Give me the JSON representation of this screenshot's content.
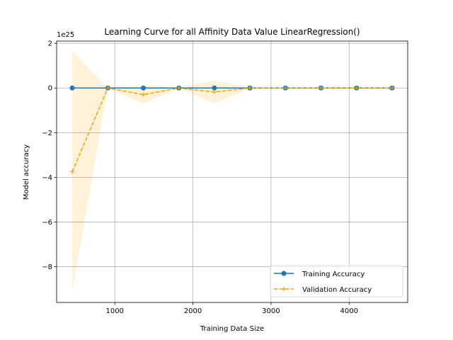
{
  "chart_data": {
    "type": "line",
    "title": "Learning Curve for all Affinity Data Value LinearRegression()",
    "xlabel": "Training Data Size",
    "ylabel": "Model accuracy",
    "offset_text": "1e25",
    "x": [
      455,
      910,
      1365,
      1820,
      2275,
      2730,
      3185,
      3640,
      4095,
      4550
    ],
    "xlim": [
      255,
      4750
    ],
    "ylim": [
      -9.6,
      2.1
    ],
    "xticks": [
      1000,
      2000,
      3000,
      4000
    ],
    "yticks": [
      2,
      0,
      -2,
      -4,
      -6,
      -8
    ],
    "ytick_labels": [
      "2",
      "0",
      "−2",
      "−4",
      "−6",
      "−8"
    ],
    "grid": true,
    "legend_position": "lower-right",
    "series": [
      {
        "name": "Training Accuracy",
        "color": "#1f77b4",
        "marker": "circle",
        "linestyle": "solid",
        "values": [
          0,
          0,
          0,
          0,
          0,
          0,
          0,
          0,
          0,
          0
        ]
      },
      {
        "name": "Validation Accuracy",
        "color": "#f0a30a",
        "marker": "plus",
        "linestyle": "dashed",
        "values": [
          -3.75,
          0,
          -0.3,
          0,
          -0.18,
          0,
          0,
          0,
          0,
          0
        ],
        "band_upper": [
          1.65,
          0,
          0.1,
          0,
          0.35,
          0,
          0,
          0,
          0,
          0
        ],
        "band_lower": [
          -9.1,
          0,
          -0.7,
          0,
          -0.7,
          0,
          0,
          0,
          0,
          0
        ]
      }
    ]
  }
}
